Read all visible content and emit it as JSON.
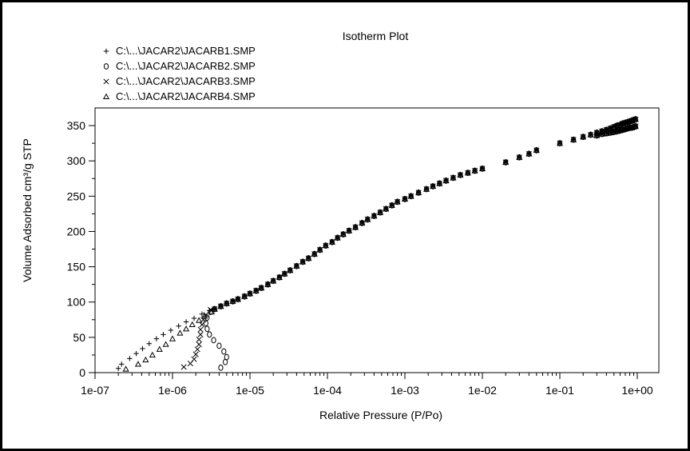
{
  "chart_data": {
    "type": "scatter",
    "title": "Isotherm Plot",
    "xlabel": "Relative Pressure (P/Po)",
    "ylabel": "Volume Adsorbed cm³/g STP",
    "x_scale": "log",
    "xlim": [
      1e-07,
      1.3
    ],
    "ylim": [
      0,
      375
    ],
    "x_ticks": [
      1e-07,
      1e-06,
      1e-05,
      0.0001,
      0.001,
      0.01,
      0.1,
      1
    ],
    "x_tick_labels": [
      "1e-07",
      "1e-06",
      "1e-05",
      "1e-04",
      "1e-03",
      "1e-02",
      "1e-01",
      "1e+00"
    ],
    "y_ticks": [
      0,
      50,
      100,
      150,
      200,
      250,
      300,
      350
    ],
    "y_tick_labels": [
      "0",
      "50",
      "100",
      "150",
      "200",
      "250",
      "300",
      "350"
    ],
    "grid": false,
    "legend_position": "top-left",
    "series": [
      {
        "name": "C:\\...\\JACAR2\\JACARB1.SMP",
        "marker": "plus",
        "points": [
          [
            2e-07,
            6
          ],
          [
            2.2e-07,
            12
          ],
          [
            2.8e-07,
            20
          ],
          [
            3.4e-07,
            27
          ],
          [
            4.1e-07,
            34
          ],
          [
            5e-07,
            41
          ],
          [
            6.2e-07,
            48
          ],
          [
            7.6e-07,
            54
          ],
          [
            9.5e-07,
            60
          ],
          [
            1.2e-06,
            66
          ],
          [
            1.5e-06,
            72
          ],
          [
            1.9e-06,
            77
          ],
          [
            2.4e-06,
            83
          ],
          [
            3e-06,
            88
          ]
        ]
      },
      {
        "name": "C:\\...\\JACAR2\\JACARB2.SMP",
        "marker": "circle",
        "points": [
          [
            4.2e-06,
            7
          ],
          [
            4.8e-06,
            15
          ],
          [
            5e-06,
            22
          ],
          [
            4.6e-06,
            30
          ],
          [
            4e-06,
            38
          ],
          [
            3.4e-06,
            46
          ],
          [
            3e-06,
            54
          ],
          [
            2.8e-06,
            62
          ],
          [
            2.7e-06,
            70
          ],
          [
            2.8e-06,
            78
          ],
          [
            3.1e-06,
            86
          ]
        ]
      },
      {
        "name": "C:\\...\\JACAR2\\JACARB3.SMP",
        "marker": "x",
        "points": [
          [
            1.4e-06,
            8
          ],
          [
            1.7e-06,
            13
          ],
          [
            1.9e-06,
            19
          ],
          [
            2e-06,
            26
          ],
          [
            2.1e-06,
            33
          ],
          [
            2.2e-06,
            40
          ],
          [
            2.2e-06,
            47
          ],
          [
            2.3e-06,
            54
          ],
          [
            2.3e-06,
            61
          ],
          [
            2.4e-06,
            68
          ],
          [
            2.5e-06,
            75
          ],
          [
            2.7e-06,
            82
          ],
          [
            3.1e-06,
            89
          ]
        ]
      },
      {
        "name": "C:\\...\\JACAR2\\JACARB4.SMP",
        "marker": "triangle",
        "points": [
          [
            2.5e-07,
            5
          ],
          [
            3.6e-07,
            12
          ],
          [
            4.5e-07,
            18
          ],
          [
            5.5e-07,
            25
          ],
          [
            6.8e-07,
            33
          ],
          [
            8.2e-07,
            40
          ],
          [
            1e-06,
            48
          ],
          [
            1.25e-06,
            56
          ],
          [
            1.5e-06,
            62
          ],
          [
            1.8e-06,
            68
          ],
          [
            2.2e-06,
            74
          ],
          [
            2.6e-06,
            80
          ],
          [
            3.2e-06,
            86
          ]
        ]
      }
    ],
    "shared_trend": {
      "description_markers": "all four series overlap along this trend",
      "points": [
        [
          3.5e-06,
          90
        ],
        [
          4.2e-06,
          94
        ],
        [
          5e-06,
          98
        ],
        [
          6e-06,
          101
        ],
        [
          7e-06,
          104
        ],
        [
          8.5e-06,
          108
        ],
        [
          1e-05,
          112
        ],
        [
          1.2e-05,
          116
        ],
        [
          1.4e-05,
          120
        ],
        [
          1.7e-05,
          125
        ],
        [
          2e-05,
          130
        ],
        [
          2.4e-05,
          135
        ],
        [
          2.8e-05,
          140
        ],
        [
          3.3e-05,
          145
        ],
        [
          4e-05,
          151
        ],
        [
          4.8e-05,
          157
        ],
        [
          5.7e-05,
          162
        ],
        [
          6.8e-05,
          168
        ],
        [
          8e-05,
          174
        ],
        [
          9.5e-05,
          180
        ],
        [
          0.000115,
          185
        ],
        [
          0.000135,
          191
        ],
        [
          0.00016,
          196
        ],
        [
          0.00019,
          201
        ],
        [
          0.00023,
          206
        ],
        [
          0.00028,
          212
        ],
        [
          0.00033,
          217
        ],
        [
          0.0004,
          222
        ],
        [
          0.00048,
          227
        ],
        [
          0.00057,
          232
        ],
        [
          0.00068,
          237
        ],
        [
          0.0008,
          242
        ],
        [
          0.001,
          246
        ],
        [
          0.0012,
          250
        ],
        [
          0.0015,
          255
        ],
        [
          0.0019,
          260
        ],
        [
          0.0023,
          264
        ],
        [
          0.0028,
          268
        ],
        [
          0.0034,
          272
        ],
        [
          0.0042,
          276
        ],
        [
          0.0052,
          280
        ],
        [
          0.0065,
          283
        ],
        [
          0.008,
          286
        ],
        [
          0.01,
          289
        ],
        [
          0.02,
          298
        ],
        [
          0.03,
          305
        ],
        [
          0.04,
          310
        ],
        [
          0.05,
          315
        ],
        [
          0.1,
          325
        ],
        [
          0.15,
          330
        ],
        [
          0.2,
          334
        ],
        [
          0.25,
          337
        ],
        [
          0.3,
          340
        ],
        [
          0.35,
          342
        ],
        [
          0.4,
          344
        ],
        [
          0.45,
          346
        ],
        [
          0.5,
          348
        ],
        [
          0.55,
          350
        ],
        [
          0.6,
          351
        ],
        [
          0.65,
          353
        ],
        [
          0.7,
          354
        ],
        [
          0.75,
          355
        ],
        [
          0.8,
          356
        ],
        [
          0.85,
          357
        ],
        [
          0.9,
          358
        ],
        [
          0.95,
          359
        ]
      ]
    },
    "desorption_tail": {
      "points": [
        [
          0.95,
          349
        ],
        [
          0.9,
          348
        ],
        [
          0.85,
          347
        ],
        [
          0.8,
          347
        ],
        [
          0.75,
          346
        ],
        [
          0.7,
          345
        ],
        [
          0.65,
          344
        ],
        [
          0.6,
          343
        ],
        [
          0.55,
          342
        ],
        [
          0.5,
          341
        ],
        [
          0.45,
          340
        ],
        [
          0.4,
          339
        ],
        [
          0.35,
          338
        ],
        [
          0.3,
          336
        ]
      ]
    }
  }
}
